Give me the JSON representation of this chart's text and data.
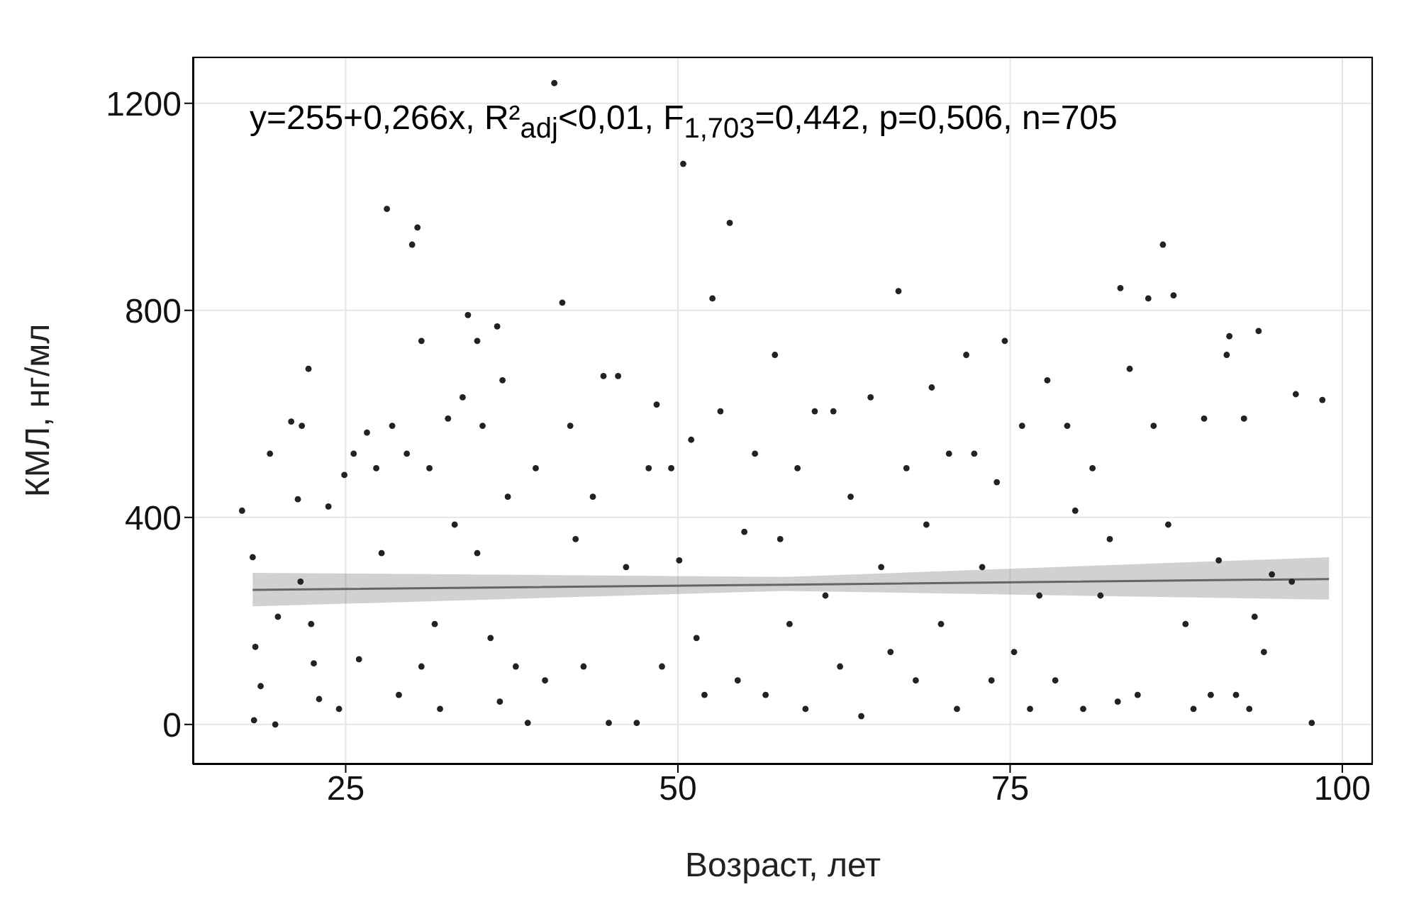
{
  "chart_data": {
    "type": "scatter",
    "xlabel": "Возраст, лет",
    "ylabel": "КМЛ, нг/мл",
    "annotations": [
      "y=255+0,266x, R²$_{adj}$<0,01, F$_{1,703}$=0,442, p=0,506, n=705"
    ],
    "xlim": [
      13.5,
      102.3
    ],
    "xticks": [
      25,
      50,
      75,
      100
    ],
    "ylim": [
      -77,
      1290
    ],
    "yticks": [
      0,
      400,
      800,
      1200
    ],
    "grid": true,
    "series": [
      {
        "marker": "circle",
        "color": "#222222",
        "x": [
          17.2,
          18,
          18.2,
          18.1,
          18.6,
          19.3,
          19.7,
          19.9,
          20.9,
          21.7,
          21.4,
          22.2,
          21.6,
          22.4,
          22.6,
          23,
          23.7,
          24.5,
          24.9,
          25.6,
          26,
          26.6,
          27.3,
          27.7,
          28.1,
          28.5,
          29,
          29.6,
          30,
          30.4,
          30.7,
          30.7,
          31.3,
          31.7,
          32.1,
          32.7,
          33.2,
          33.8,
          34.2,
          34.9,
          34.9,
          35.3,
          35.9,
          36.4,
          36.8,
          36.6,
          37.2,
          37.8,
          38.7,
          39.3,
          40,
          40.7,
          41.3,
          41.9,
          42.3,
          42.9,
          43.6,
          44.4,
          44.8,
          45.5,
          46.1,
          46.9,
          47.8,
          48.4,
          48.8,
          49.5,
          50.1,
          50.4,
          51,
          51.4,
          52,
          52.6,
          53.2,
          53.9,
          54.5,
          55,
          55.8,
          56.6,
          57.3,
          57.7,
          58.4,
          59,
          59.6,
          60.3,
          61.1,
          61.7,
          62.2,
          63,
          63.8,
          64.5,
          65.3,
          66,
          66.6,
          67.2,
          67.9,
          68.7,
          69.1,
          69.8,
          70.4,
          71,
          71.7,
          72.3,
          72.9,
          73.6,
          74,
          74.6,
          75.3,
          75.9,
          76.5,
          77.2,
          77.8,
          78.4,
          79.3,
          79.9,
          80.5,
          81.2,
          81.8,
          82.5,
          83.1,
          83.3,
          84,
          84.6,
          85.4,
          85.8,
          86.5,
          86.9,
          87.3,
          88.2,
          88.8,
          89.6,
          90.1,
          90.7,
          91.3,
          91.5,
          92,
          92.6,
          93,
          93.4,
          93.7,
          94.1,
          94.7,
          96.2,
          96.5,
          97.7,
          98.5
        ],
        "values": [
          413,
          323,
          150,
          8,
          74,
          523,
          0,
          208,
          585,
          577,
          435,
          687,
          276,
          194,
          118,
          49,
          421,
          30,
          482,
          523,
          126,
          564,
          495,
          331,
          996,
          577,
          57,
          523,
          927,
          960,
          741,
          112,
          495,
          194,
          30,
          591,
          386,
          632,
          791,
          741,
          331,
          577,
          167,
          769,
          665,
          44,
          440,
          112,
          3,
          495,
          85,
          1239,
          815,
          577,
          358,
          112,
          440,
          673,
          3,
          673,
          304,
          3,
          495,
          618,
          112,
          495,
          317,
          1083,
          550,
          167,
          57,
          823,
          605,
          969,
          85,
          372,
          523,
          57,
          714,
          358,
          194,
          495,
          30,
          605,
          249,
          605,
          112,
          440,
          16,
          632,
          304,
          140,
          837,
          495,
          85,
          386,
          651,
          194,
          523,
          30,
          714,
          523,
          304,
          85,
          468,
          741,
          140,
          577,
          30,
          249,
          665,
          85,
          577,
          413,
          30,
          495,
          249,
          358,
          44,
          843,
          687,
          57,
          823,
          577,
          927,
          386,
          829,
          194,
          30,
          591,
          57,
          317,
          714,
          750,
          57,
          591,
          30,
          208,
          760,
          140,
          290,
          276,
          638,
          3,
          627
        ]
      },
      {
        "type": "line",
        "color": "#666666",
        "x": [
          18,
          58,
          99
        ],
        "values": [
          260,
          270,
          281
        ],
        "lower": [
          228,
          258,
          241
        ],
        "upper": [
          293,
          285,
          323
        ]
      }
    ]
  }
}
